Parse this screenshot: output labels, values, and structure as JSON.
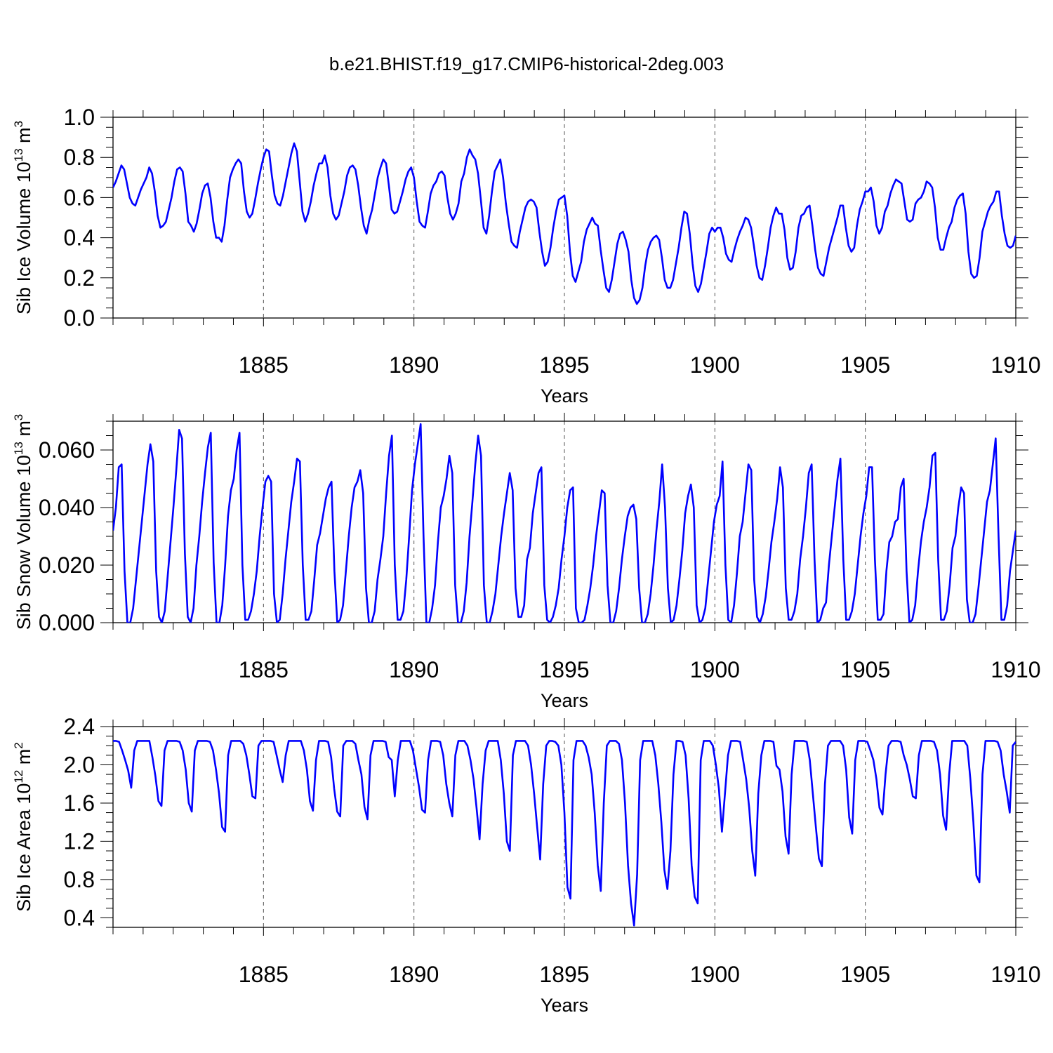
{
  "title": "b.e21.BHIST.f19_g17.CMIP6-historical-2deg.003",
  "style": {
    "line_color": "#0000ff",
    "axis_color": "#000000",
    "grid_color": "#555555"
  },
  "chart_data": [
    {
      "id": "volume",
      "type": "line",
      "ylabel": "Sib Ice Volume 10",
      "ylabel_exp": "13",
      "ylabel_unit": " m",
      "ylabel_unit_exp": "3",
      "xlabel": "Years",
      "xlim": [
        1880.0,
        1910.0
      ],
      "ylim": [
        0.0,
        1.0
      ],
      "yticks": [
        0.0,
        0.2,
        0.4,
        0.6,
        0.8,
        1.0
      ],
      "ytick_labels": [
        "0.0",
        "0.2",
        "0.4",
        "0.6",
        "0.8",
        "1.0"
      ],
      "xticks": [
        1885,
        1890,
        1895,
        1900,
        1905,
        1910
      ],
      "xtick_labels": [
        "1885",
        "1890",
        "1895",
        "1900",
        "1905",
        "1910"
      ],
      "series": [
        {
          "name": "Sib Ice Volume",
          "values": [
            0.65,
            0.68,
            0.72,
            0.76,
            0.74,
            0.67,
            0.6,
            0.57,
            0.56,
            0.6,
            0.64,
            0.67,
            0.7,
            0.75,
            0.72,
            0.63,
            0.51,
            0.45,
            0.46,
            0.48,
            0.54,
            0.6,
            0.68,
            0.74,
            0.75,
            0.73,
            0.62,
            0.48,
            0.46,
            0.43,
            0.47,
            0.54,
            0.62,
            0.66,
            0.67,
            0.6,
            0.48,
            0.4,
            0.4,
            0.38,
            0.46,
            0.59,
            0.7,
            0.74,
            0.77,
            0.79,
            0.77,
            0.63,
            0.53,
            0.5,
            0.52,
            0.59,
            0.67,
            0.74,
            0.8,
            0.84,
            0.83,
            0.71,
            0.61,
            0.57,
            0.56,
            0.61,
            0.68,
            0.75,
            0.82,
            0.87,
            0.83,
            0.68,
            0.53,
            0.48,
            0.52,
            0.58,
            0.66,
            0.72,
            0.77,
            0.77,
            0.81,
            0.75,
            0.61,
            0.52,
            0.49,
            0.51,
            0.57,
            0.63,
            0.71,
            0.75,
            0.76,
            0.74,
            0.66,
            0.55,
            0.46,
            0.42,
            0.49,
            0.54,
            0.62,
            0.7,
            0.75,
            0.79,
            0.77,
            0.66,
            0.54,
            0.52,
            0.53,
            0.58,
            0.63,
            0.69,
            0.73,
            0.75,
            0.7,
            0.58,
            0.48,
            0.46,
            0.45,
            0.53,
            0.62,
            0.66,
            0.68,
            0.72,
            0.73,
            0.71,
            0.6,
            0.52,
            0.49,
            0.52,
            0.57,
            0.68,
            0.72,
            0.8,
            0.84,
            0.81,
            0.79,
            0.72,
            0.59,
            0.45,
            0.42,
            0.51,
            0.63,
            0.73,
            0.76,
            0.79,
            0.7,
            0.57,
            0.47,
            0.38,
            0.36,
            0.35,
            0.43,
            0.49,
            0.55,
            0.58,
            0.59,
            0.58,
            0.55,
            0.43,
            0.33,
            0.26,
            0.28,
            0.35,
            0.45,
            0.53,
            0.59,
            0.6,
            0.61,
            0.51,
            0.33,
            0.21,
            0.18,
            0.23,
            0.28,
            0.38,
            0.44,
            0.47,
            0.5,
            0.47,
            0.46,
            0.34,
            0.24,
            0.15,
            0.13,
            0.19,
            0.28,
            0.37,
            0.42,
            0.43,
            0.39,
            0.33,
            0.19,
            0.1,
            0.07,
            0.09,
            0.15,
            0.26,
            0.34,
            0.38,
            0.4,
            0.41,
            0.39,
            0.3,
            0.19,
            0.15,
            0.15,
            0.19,
            0.27,
            0.35,
            0.45,
            0.53,
            0.52,
            0.42,
            0.27,
            0.16,
            0.13,
            0.17,
            0.25,
            0.33,
            0.42,
            0.45,
            0.43,
            0.45,
            0.45,
            0.4,
            0.32,
            0.29,
            0.28,
            0.34,
            0.39,
            0.43,
            0.46,
            0.5,
            0.49,
            0.45,
            0.36,
            0.26,
            0.2,
            0.19,
            0.26,
            0.35,
            0.45,
            0.51,
            0.55,
            0.52,
            0.52,
            0.44,
            0.3,
            0.24,
            0.25,
            0.33,
            0.45,
            0.51,
            0.52,
            0.55,
            0.56,
            0.46,
            0.34,
            0.25,
            0.22,
            0.21,
            0.28,
            0.35,
            0.4,
            0.45,
            0.5,
            0.56,
            0.56,
            0.45,
            0.36,
            0.33,
            0.35,
            0.46,
            0.54,
            0.58,
            0.63,
            0.63,
            0.65,
            0.58,
            0.46,
            0.42,
            0.45,
            0.53,
            0.56,
            0.62,
            0.66,
            0.69,
            0.68,
            0.67,
            0.58,
            0.49,
            0.48,
            0.49,
            0.57,
            0.59,
            0.6,
            0.63,
            0.68,
            0.67,
            0.65,
            0.55,
            0.4,
            0.34,
            0.34,
            0.4,
            0.45,
            0.48,
            0.55,
            0.59,
            0.61,
            0.62,
            0.52,
            0.33,
            0.22,
            0.2,
            0.21,
            0.3,
            0.43,
            0.48,
            0.53,
            0.56,
            0.58,
            0.63,
            0.63,
            0.51,
            0.42,
            0.36,
            0.35,
            0.36,
            0.41
          ]
        }
      ]
    },
    {
      "id": "snow",
      "type": "line",
      "ylabel": "Sib Snow Volume 10",
      "ylabel_exp": "13",
      "ylabel_unit": " m",
      "ylabel_unit_exp": "3",
      "xlabel": "Years",
      "xlim": [
        1880.0,
        1910.0
      ],
      "ylim": [
        0.0,
        0.07
      ],
      "yticks": [
        0.0,
        0.02,
        0.04,
        0.06
      ],
      "ytick_labels": [
        "0.000",
        "0.020",
        "0.040",
        "0.060"
      ],
      "xticks": [
        1885,
        1890,
        1895,
        1900,
        1905,
        1910
      ],
      "xtick_labels": [
        "1885",
        "1890",
        "1895",
        "1900",
        "1905",
        "1910"
      ],
      "series": [
        {
          "name": "Sib Snow Volume",
          "values": [
            0.032,
            0.04,
            0.054,
            0.055,
            0.018,
            0.0,
            0.0,
            0.005,
            0.015,
            0.025,
            0.035,
            0.045,
            0.055,
            0.062,
            0.056,
            0.018,
            0.002,
            0.0,
            0.004,
            0.016,
            0.028,
            0.04,
            0.053,
            0.067,
            0.064,
            0.024,
            0.002,
            0.0,
            0.005,
            0.02,
            0.03,
            0.042,
            0.052,
            0.061,
            0.066,
            0.021,
            0.0,
            0.0,
            0.006,
            0.02,
            0.037,
            0.046,
            0.05,
            0.06,
            0.066,
            0.02,
            0.001,
            0.001,
            0.004,
            0.01,
            0.018,
            0.03,
            0.04,
            0.049,
            0.051,
            0.049,
            0.01,
            0.0,
            0.001,
            0.01,
            0.022,
            0.032,
            0.042,
            0.049,
            0.057,
            0.056,
            0.02,
            0.001,
            0.001,
            0.004,
            0.015,
            0.027,
            0.031,
            0.037,
            0.043,
            0.047,
            0.049,
            0.018,
            0.0,
            0.001,
            0.006,
            0.018,
            0.03,
            0.04,
            0.047,
            0.049,
            0.053,
            0.045,
            0.012,
            0.0,
            0.0,
            0.004,
            0.015,
            0.022,
            0.03,
            0.045,
            0.058,
            0.065,
            0.02,
            0.001,
            0.001,
            0.004,
            0.015,
            0.03,
            0.046,
            0.055,
            0.062,
            0.069,
            0.03,
            0.0,
            0.0,
            0.005,
            0.013,
            0.028,
            0.04,
            0.044,
            0.05,
            0.058,
            0.052,
            0.013,
            0.0,
            0.0,
            0.004,
            0.014,
            0.03,
            0.042,
            0.055,
            0.065,
            0.058,
            0.013,
            0.0,
            0.0,
            0.004,
            0.01,
            0.02,
            0.03,
            0.038,
            0.045,
            0.052,
            0.046,
            0.012,
            0.002,
            0.002,
            0.006,
            0.022,
            0.026,
            0.038,
            0.045,
            0.052,
            0.054,
            0.013,
            0.001,
            0.0,
            0.002,
            0.006,
            0.012,
            0.022,
            0.03,
            0.04,
            0.046,
            0.047,
            0.005,
            0.0,
            0.0,
            0.001,
            0.006,
            0.012,
            0.02,
            0.03,
            0.038,
            0.046,
            0.045,
            0.013,
            0.0,
            0.0,
            0.004,
            0.012,
            0.022,
            0.03,
            0.037,
            0.04,
            0.041,
            0.036,
            0.012,
            0.0,
            0.0,
            0.003,
            0.01,
            0.02,
            0.032,
            0.042,
            0.055,
            0.04,
            0.012,
            0.0,
            0.001,
            0.006,
            0.015,
            0.025,
            0.038,
            0.044,
            0.048,
            0.04,
            0.006,
            0.0,
            0.001,
            0.005,
            0.015,
            0.025,
            0.035,
            0.041,
            0.044,
            0.056,
            0.02,
            0.001,
            0.0,
            0.006,
            0.017,
            0.03,
            0.035,
            0.045,
            0.055,
            0.053,
            0.015,
            0.002,
            0.0,
            0.003,
            0.009,
            0.018,
            0.028,
            0.035,
            0.043,
            0.054,
            0.047,
            0.012,
            0.001,
            0.001,
            0.004,
            0.01,
            0.022,
            0.03,
            0.04,
            0.052,
            0.055,
            0.022,
            0.0,
            0.001,
            0.005,
            0.007,
            0.02,
            0.03,
            0.04,
            0.05,
            0.057,
            0.022,
            0.001,
            0.001,
            0.004,
            0.01,
            0.02,
            0.03,
            0.038,
            0.044,
            0.054,
            0.054,
            0.022,
            0.001,
            0.001,
            0.003,
            0.018,
            0.028,
            0.03,
            0.035,
            0.036,
            0.047,
            0.05,
            0.018,
            0.0,
            0.001,
            0.006,
            0.018,
            0.028,
            0.035,
            0.04,
            0.047,
            0.058,
            0.059,
            0.022,
            0.001,
            0.001,
            0.004,
            0.013,
            0.026,
            0.03,
            0.04,
            0.047,
            0.045,
            0.008,
            0.0,
            0.0,
            0.003,
            0.012,
            0.022,
            0.032,
            0.042,
            0.046,
            0.055,
            0.064,
            0.03,
            0.001,
            0.001,
            0.006,
            0.018,
            0.025,
            0.032
          ]
        }
      ]
    },
    {
      "id": "area",
      "type": "line",
      "ylabel": "Sib Ice Area 10",
      "ylabel_exp": "12",
      "ylabel_unit": " m",
      "ylabel_unit_exp": "2",
      "xlabel": "Years",
      "xlim": [
        1880.0,
        1910.0
      ],
      "ylim": [
        0.3,
        2.4
      ],
      "yticks": [
        0.4,
        0.8,
        1.2,
        1.6,
        2.0,
        2.4
      ],
      "ytick_labels": [
        "0.4",
        "0.8",
        "1.2",
        "1.6",
        "2.0",
        "2.4"
      ],
      "xticks": [
        1885,
        1890,
        1895,
        1900,
        1905,
        1910
      ],
      "xtick_labels": [
        "1885",
        "1890",
        "1895",
        "1900",
        "1905",
        "1910"
      ],
      "series": [
        {
          "name": "Sib Ice Area",
          "values": [
            2.25,
            2.25,
            2.24,
            2.15,
            2.05,
            1.94,
            1.76,
            2.15,
            2.25,
            2.25,
            2.25,
            2.25,
            2.25,
            2.08,
            1.88,
            1.62,
            1.57,
            2.15,
            2.25,
            2.25,
            2.25,
            2.25,
            2.24,
            2.15,
            1.95,
            1.6,
            1.51,
            2.15,
            2.25,
            2.25,
            2.25,
            2.25,
            2.24,
            2.15,
            1.95,
            1.7,
            1.35,
            1.3,
            2.1,
            2.25,
            2.25,
            2.25,
            2.25,
            2.22,
            2.1,
            1.9,
            1.67,
            1.65,
            2.2,
            2.25,
            2.25,
            2.25,
            2.25,
            2.24,
            2.1,
            1.95,
            1.82,
            2.1,
            2.25,
            2.25,
            2.25,
            2.25,
            2.25,
            2.15,
            1.95,
            1.62,
            1.52,
            2.05,
            2.25,
            2.25,
            2.25,
            2.24,
            2.08,
            1.75,
            1.51,
            1.46,
            2.2,
            2.25,
            2.25,
            2.25,
            2.22,
            2.05,
            1.9,
            1.56,
            1.43,
            2.1,
            2.25,
            2.25,
            2.25,
            2.25,
            2.24,
            2.08,
            2.05,
            1.67,
            2.05,
            2.25,
            2.25,
            2.25,
            2.25,
            2.15,
            1.96,
            1.77,
            1.53,
            1.5,
            2.05,
            2.25,
            2.25,
            2.25,
            2.24,
            2.1,
            1.8,
            1.6,
            1.46,
            2.1,
            2.25,
            2.25,
            2.25,
            2.2,
            2.05,
            1.85,
            1.55,
            1.22,
            1.8,
            2.15,
            2.25,
            2.25,
            2.25,
            2.25,
            2.05,
            1.7,
            1.2,
            1.1,
            2.1,
            2.25,
            2.25,
            2.25,
            2.25,
            2.2,
            2.0,
            1.7,
            1.35,
            1.01,
            1.8,
            2.2,
            2.25,
            2.25,
            2.24,
            2.2,
            2.0,
            1.5,
            0.72,
            0.6,
            2.05,
            2.25,
            2.25,
            2.25,
            2.2,
            2.08,
            1.9,
            1.5,
            0.95,
            0.68,
            1.6,
            2.2,
            2.25,
            2.25,
            2.25,
            2.22,
            2.05,
            1.6,
            0.95,
            0.55,
            0.32,
            0.85,
            2.05,
            2.25,
            2.25,
            2.25,
            2.25,
            2.1,
            1.8,
            1.4,
            0.9,
            0.7,
            1.1,
            1.9,
            2.25,
            2.25,
            2.24,
            2.1,
            1.65,
            0.95,
            0.62,
            0.55,
            2.05,
            2.25,
            2.25,
            2.25,
            2.2,
            2.0,
            1.75,
            1.3,
            1.7,
            2.1,
            2.25,
            2.25,
            2.25,
            2.24,
            2.05,
            1.85,
            1.55,
            1.1,
            0.84,
            1.7,
            2.1,
            2.25,
            2.25,
            2.25,
            2.24,
            1.99,
            1.95,
            1.72,
            1.25,
            1.07,
            1.9,
            2.25,
            2.25,
            2.25,
            2.25,
            2.24,
            2.05,
            1.7,
            1.35,
            1.02,
            0.94,
            1.8,
            2.2,
            2.25,
            2.25,
            2.25,
            2.25,
            2.2,
            1.95,
            1.45,
            1.28,
            2.05,
            2.25,
            2.25,
            2.25,
            2.24,
            2.15,
            2.05,
            1.85,
            1.55,
            1.48,
            1.9,
            2.2,
            2.25,
            2.25,
            2.25,
            2.24,
            2.1,
            2.0,
            1.85,
            1.67,
            1.65,
            2.1,
            2.25,
            2.25,
            2.25,
            2.25,
            2.24,
            2.15,
            1.9,
            1.47,
            1.32,
            1.9,
            2.25,
            2.25,
            2.25,
            2.25,
            2.25,
            2.2,
            1.85,
            1.4,
            0.84,
            0.77,
            1.9,
            2.25,
            2.25,
            2.25,
            2.25,
            2.24,
            2.15,
            1.9,
            1.72,
            1.5,
            2.2,
            2.24
          ]
        }
      ]
    }
  ]
}
